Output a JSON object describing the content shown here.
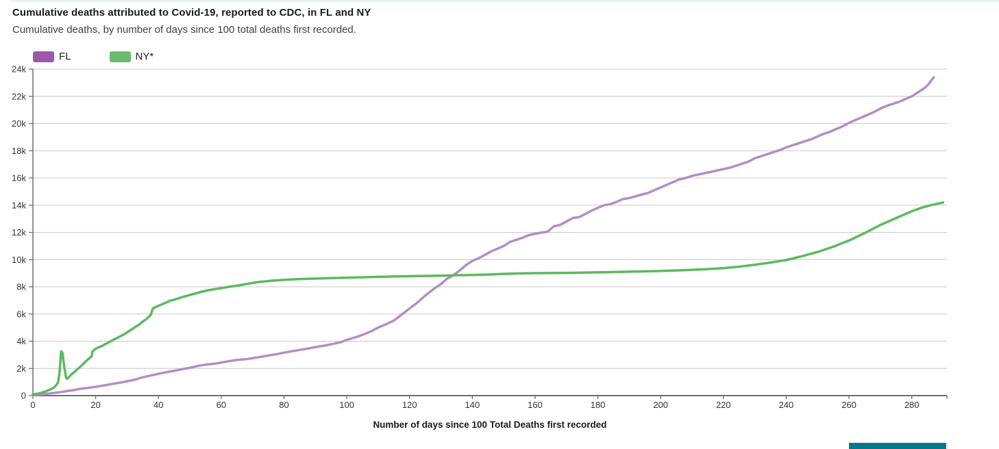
{
  "header": {
    "title": "Cumulative deaths attributed to Covid-19, reported to CDC, in FL and NY",
    "subtitle": "Cumulative deaths, by number of days since 100 total deaths first recorded."
  },
  "legend": [
    {
      "label": "FL",
      "swatch_color": "#9c59ab"
    },
    {
      "label": "NY*",
      "swatch_color": "#69bd6d"
    }
  ],
  "colors": {
    "top_strip": "#e8f3f0",
    "grid_line": "#c8c8c8",
    "axis_line": "#6e6e6e",
    "tick_label": "#333333",
    "partial_button_teal": "#07788c"
  },
  "chart_data": {
    "type": "line",
    "title": "Cumulative deaths attributed to Covid-19, reported to CDC, in FL and NY",
    "subtitle": "Cumulative deaths, by number of days since 100 total deaths first recorded.",
    "xlabel": "Number of days since 100 Total Deaths first recorded",
    "ylabel": "",
    "xlim": [
      0,
      291
    ],
    "ylim": [
      0,
      24000
    ],
    "x_ticks": [
      0,
      20,
      40,
      60,
      80,
      100,
      120,
      140,
      160,
      180,
      200,
      220,
      240,
      260,
      280
    ],
    "y_ticks": [
      {
        "value": 0,
        "label": "0"
      },
      {
        "value": 2000,
        "label": "2k"
      },
      {
        "value": 4000,
        "label": "4k"
      },
      {
        "value": 6000,
        "label": "6k"
      },
      {
        "value": 8000,
        "label": "8k"
      },
      {
        "value": 10000,
        "label": "10k"
      },
      {
        "value": 12000,
        "label": "12k"
      },
      {
        "value": 14000,
        "label": "14k"
      },
      {
        "value": 16000,
        "label": "16k"
      },
      {
        "value": 18000,
        "label": "18k"
      },
      {
        "value": 20000,
        "label": "20k"
      },
      {
        "value": 22000,
        "label": "22k"
      },
      {
        "value": 24000,
        "label": "24k"
      }
    ],
    "grid": true,
    "legend_position": "top-left",
    "series": [
      {
        "name": "FL",
        "line_color": "#b38dc5",
        "points": [
          [
            0,
            50
          ],
          [
            3,
            100
          ],
          [
            5,
            150
          ],
          [
            8,
            230
          ],
          [
            10,
            300
          ],
          [
            13,
            400
          ],
          [
            15,
            500
          ],
          [
            18,
            580
          ],
          [
            20,
            650
          ],
          [
            23,
            760
          ],
          [
            25,
            850
          ],
          [
            28,
            960
          ],
          [
            30,
            1050
          ],
          [
            33,
            1200
          ],
          [
            35,
            1350
          ],
          [
            38,
            1500
          ],
          [
            40,
            1600
          ],
          [
            42,
            1700
          ],
          [
            44,
            1780
          ],
          [
            46,
            1870
          ],
          [
            48,
            1960
          ],
          [
            50,
            2050
          ],
          [
            53,
            2200
          ],
          [
            55,
            2280
          ],
          [
            58,
            2350
          ],
          [
            60,
            2430
          ],
          [
            63,
            2550
          ],
          [
            65,
            2620
          ],
          [
            68,
            2680
          ],
          [
            70,
            2750
          ],
          [
            72,
            2830
          ],
          [
            75,
            2950
          ],
          [
            78,
            3060
          ],
          [
            80,
            3160
          ],
          [
            83,
            3280
          ],
          [
            85,
            3360
          ],
          [
            88,
            3470
          ],
          [
            90,
            3560
          ],
          [
            93,
            3680
          ],
          [
            95,
            3780
          ],
          [
            98,
            3920
          ],
          [
            100,
            4100
          ],
          [
            103,
            4300
          ],
          [
            105,
            4470
          ],
          [
            108,
            4750
          ],
          [
            110,
            5000
          ],
          [
            113,
            5300
          ],
          [
            115,
            5520
          ],
          [
            118,
            6050
          ],
          [
            120,
            6400
          ],
          [
            122,
            6750
          ],
          [
            125,
            7350
          ],
          [
            128,
            7900
          ],
          [
            130,
            8200
          ],
          [
            132,
            8600
          ],
          [
            134,
            8850
          ],
          [
            136,
            9200
          ],
          [
            138,
            9600
          ],
          [
            140,
            9900
          ],
          [
            142,
            10100
          ],
          [
            144,
            10350
          ],
          [
            146,
            10600
          ],
          [
            148,
            10800
          ],
          [
            150,
            11000
          ],
          [
            152,
            11300
          ],
          [
            154,
            11450
          ],
          [
            156,
            11600
          ],
          [
            158,
            11800
          ],
          [
            160,
            11900
          ],
          [
            162,
            11980
          ],
          [
            164,
            12050
          ],
          [
            166,
            12450
          ],
          [
            168,
            12550
          ],
          [
            170,
            12800
          ],
          [
            172,
            13050
          ],
          [
            174,
            13120
          ],
          [
            176,
            13350
          ],
          [
            178,
            13600
          ],
          [
            180,
            13800
          ],
          [
            182,
            14000
          ],
          [
            184,
            14080
          ],
          [
            186,
            14250
          ],
          [
            188,
            14450
          ],
          [
            190,
            14520
          ],
          [
            192,
            14650
          ],
          [
            194,
            14780
          ],
          [
            196,
            14900
          ],
          [
            198,
            15100
          ],
          [
            200,
            15300
          ],
          [
            202,
            15500
          ],
          [
            204,
            15700
          ],
          [
            206,
            15900
          ],
          [
            208,
            16000
          ],
          [
            210,
            16150
          ],
          [
            212,
            16250
          ],
          [
            214,
            16350
          ],
          [
            216,
            16450
          ],
          [
            218,
            16550
          ],
          [
            220,
            16650
          ],
          [
            222,
            16750
          ],
          [
            224,
            16900
          ],
          [
            226,
            17050
          ],
          [
            228,
            17200
          ],
          [
            230,
            17450
          ],
          [
            232,
            17600
          ],
          [
            234,
            17750
          ],
          [
            236,
            17900
          ],
          [
            238,
            18050
          ],
          [
            240,
            18250
          ],
          [
            242,
            18400
          ],
          [
            244,
            18550
          ],
          [
            246,
            18700
          ],
          [
            248,
            18850
          ],
          [
            250,
            19050
          ],
          [
            252,
            19250
          ],
          [
            254,
            19400
          ],
          [
            256,
            19600
          ],
          [
            258,
            19800
          ],
          [
            260,
            20050
          ],
          [
            262,
            20250
          ],
          [
            264,
            20450
          ],
          [
            266,
            20650
          ],
          [
            268,
            20850
          ],
          [
            270,
            21100
          ],
          [
            272,
            21300
          ],
          [
            274,
            21450
          ],
          [
            276,
            21600
          ],
          [
            278,
            21800
          ],
          [
            280,
            22000
          ],
          [
            282,
            22300
          ],
          [
            284,
            22600
          ],
          [
            285,
            22800
          ],
          [
            286,
            23100
          ],
          [
            287,
            23400
          ]
        ]
      },
      {
        "name": "NY*",
        "line_color": "#5cb95f",
        "points": [
          [
            0,
            100
          ],
          [
            2,
            160
          ],
          [
            4,
            300
          ],
          [
            6,
            500
          ],
          [
            7,
            650
          ],
          [
            8,
            950
          ],
          [
            8.5,
            1700
          ],
          [
            9,
            3250
          ],
          [
            9.4,
            3150
          ],
          [
            10,
            2100
          ],
          [
            10.6,
            1300
          ],
          [
            11,
            1250
          ],
          [
            12,
            1500
          ],
          [
            13,
            1700
          ],
          [
            14,
            1900
          ],
          [
            15,
            2100
          ],
          [
            16,
            2330
          ],
          [
            17,
            2550
          ],
          [
            18,
            2750
          ],
          [
            18.7,
            2900
          ],
          [
            19,
            3250
          ],
          [
            20,
            3450
          ],
          [
            21,
            3550
          ],
          [
            22,
            3650
          ],
          [
            23,
            3780
          ],
          [
            24,
            3900
          ],
          [
            25,
            4020
          ],
          [
            26,
            4150
          ],
          [
            27,
            4250
          ],
          [
            28,
            4380
          ],
          [
            29,
            4500
          ],
          [
            30,
            4650
          ],
          [
            31,
            4800
          ],
          [
            32,
            4950
          ],
          [
            33,
            5100
          ],
          [
            34,
            5250
          ],
          [
            35,
            5450
          ],
          [
            36,
            5600
          ],
          [
            37,
            5800
          ],
          [
            37.6,
            5950
          ],
          [
            38.2,
            6400
          ],
          [
            39,
            6500
          ],
          [
            40,
            6600
          ],
          [
            41,
            6700
          ],
          [
            42,
            6800
          ],
          [
            43,
            6900
          ],
          [
            44,
            7000
          ],
          [
            45,
            7050
          ],
          [
            46,
            7120
          ],
          [
            47,
            7200
          ],
          [
            48,
            7270
          ],
          [
            49,
            7330
          ],
          [
            50,
            7400
          ],
          [
            52,
            7520
          ],
          [
            54,
            7650
          ],
          [
            56,
            7750
          ],
          [
            58,
            7830
          ],
          [
            60,
            7900
          ],
          [
            62,
            7980
          ],
          [
            64,
            8050
          ],
          [
            66,
            8120
          ],
          [
            68,
            8200
          ],
          [
            70,
            8280
          ],
          [
            72,
            8350
          ],
          [
            74,
            8400
          ],
          [
            76,
            8450
          ],
          [
            78,
            8480
          ],
          [
            80,
            8510
          ],
          [
            84,
            8560
          ],
          [
            88,
            8590
          ],
          [
            92,
            8620
          ],
          [
            96,
            8650
          ],
          [
            100,
            8670
          ],
          [
            105,
            8700
          ],
          [
            110,
            8730
          ],
          [
            115,
            8760
          ],
          [
            120,
            8780
          ],
          [
            125,
            8800
          ],
          [
            130,
            8820
          ],
          [
            135,
            8850
          ],
          [
            140,
            8870
          ],
          [
            145,
            8900
          ],
          [
            150,
            8950
          ],
          [
            155,
            8980
          ],
          [
            160,
            9000
          ],
          [
            165,
            9010
          ],
          [
            170,
            9020
          ],
          [
            175,
            9040
          ],
          [
            180,
            9060
          ],
          [
            185,
            9080
          ],
          [
            190,
            9110
          ],
          [
            195,
            9130
          ],
          [
            200,
            9160
          ],
          [
            205,
            9200
          ],
          [
            210,
            9250
          ],
          [
            215,
            9300
          ],
          [
            220,
            9370
          ],
          [
            225,
            9480
          ],
          [
            230,
            9620
          ],
          [
            235,
            9780
          ],
          [
            240,
            9960
          ],
          [
            245,
            10250
          ],
          [
            250,
            10560
          ],
          [
            255,
            10950
          ],
          [
            260,
            11400
          ],
          [
            265,
            11950
          ],
          [
            270,
            12550
          ],
          [
            275,
            13050
          ],
          [
            280,
            13550
          ],
          [
            283,
            13800
          ],
          [
            286,
            14000
          ],
          [
            288,
            14100
          ],
          [
            290,
            14200
          ]
        ]
      }
    ]
  }
}
